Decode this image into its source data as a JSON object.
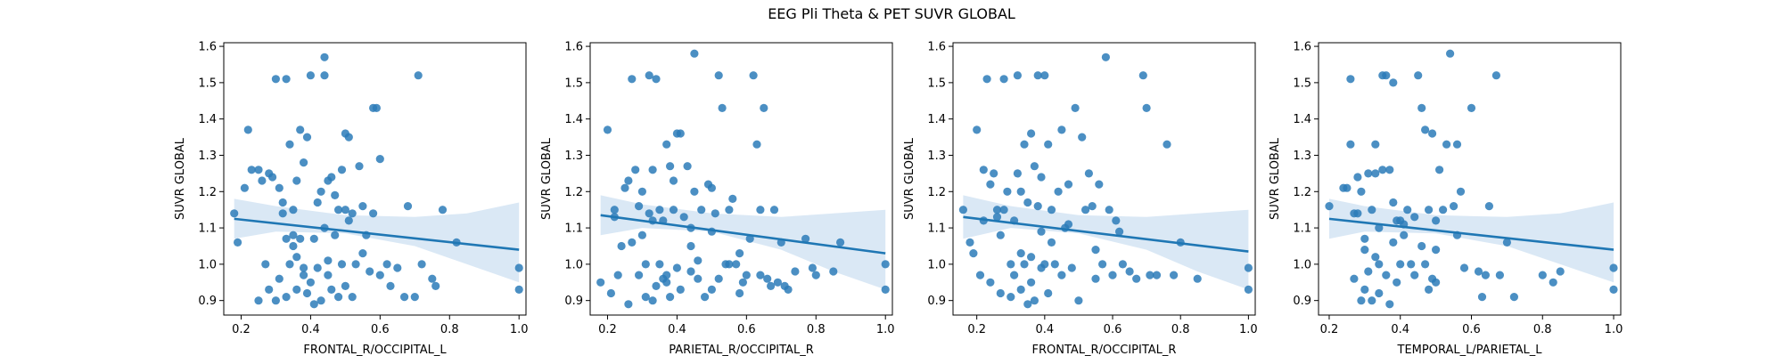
{
  "figure": {
    "title": "EEG Pli Theta & PET SUVR GLOBAL"
  },
  "style": {
    "point_color": "#2b7bb9",
    "line_color": "#1f77b4",
    "band_color": "#c6dbef"
  },
  "chart_data": [
    {
      "type": "scatter",
      "xlabel": "FRONTAL_R/OCCIPITAL_L",
      "ylabel": "SUVR GLOBAL",
      "xlim": [
        0.15,
        1.02
      ],
      "ylim": [
        0.86,
        1.61
      ],
      "xticks": [
        "0.2",
        "0.4",
        "0.6",
        "0.8",
        "1.0"
      ],
      "yticks": [
        "0.9",
        "1.0",
        "1.1",
        "1.2",
        "1.3",
        "1.4",
        "1.5",
        "1.6"
      ],
      "regression": {
        "x": [
          0.18,
          1.0
        ],
        "y": [
          1.125,
          1.04
        ]
      },
      "ci_band": {
        "x": [
          0.18,
          0.3,
          0.5,
          0.7,
          0.85,
          1.0
        ],
        "upper": [
          1.18,
          1.16,
          1.135,
          1.13,
          1.14,
          1.17
        ],
        "lower": [
          1.07,
          1.09,
          1.085,
          1.05,
          1.0,
          0.95
        ]
      },
      "points": {
        "x": [
          0.18,
          0.19,
          0.21,
          0.22,
          0.23,
          0.25,
          0.25,
          0.26,
          0.27,
          0.28,
          0.28,
          0.29,
          0.3,
          0.3,
          0.31,
          0.31,
          0.32,
          0.32,
          0.33,
          0.33,
          0.34,
          0.34,
          0.35,
          0.35,
          0.36,
          0.36,
          0.36,
          0.37,
          0.37,
          0.38,
          0.38,
          0.38,
          0.39,
          0.39,
          0.4,
          0.4,
          0.41,
          0.41,
          0.42,
          0.42,
          0.43,
          0.43,
          0.44,
          0.44,
          0.44,
          0.45,
          0.45,
          0.46,
          0.46,
          0.47,
          0.47,
          0.48,
          0.48,
          0.49,
          0.49,
          0.5,
          0.5,
          0.5,
          0.51,
          0.51,
          0.52,
          0.52,
          0.53,
          0.54,
          0.55,
          0.55,
          0.56,
          0.57,
          0.58,
          0.58,
          0.59,
          0.6,
          0.6,
          0.62,
          0.63,
          0.65,
          0.67,
          0.68,
          0.7,
          0.71,
          0.72,
          0.75,
          0.76,
          0.78,
          0.82,
          1.0,
          1.0,
          0.35,
          0.33,
          0.45
        ],
        "y": [
          1.14,
          1.06,
          1.21,
          1.37,
          1.26,
          1.26,
          0.9,
          1.23,
          1.0,
          1.25,
          0.93,
          1.24,
          0.9,
          1.51,
          1.21,
          0.96,
          1.17,
          1.14,
          0.91,
          1.51,
          1.33,
          1.0,
          1.15,
          1.08,
          1.23,
          1.02,
          0.93,
          1.37,
          1.07,
          1.28,
          0.99,
          0.97,
          1.35,
          0.92,
          1.52,
          0.95,
          1.07,
          0.89,
          1.17,
          0.99,
          1.2,
          0.9,
          1.57,
          1.52,
          1.1,
          1.23,
          0.97,
          1.24,
          0.93,
          1.19,
          1.08,
          1.15,
          0.91,
          1.26,
          1.0,
          1.36,
          1.15,
          0.94,
          1.35,
          1.12,
          1.14,
          0.91,
          1.0,
          1.27,
          1.16,
          1.03,
          1.08,
          0.98,
          1.43,
          1.14,
          1.43,
          0.97,
          1.29,
          1.0,
          0.94,
          0.99,
          0.91,
          1.16,
          0.91,
          1.52,
          1.0,
          0.96,
          0.94,
          1.15,
          1.06,
          0.99,
          0.93,
          1.05,
          1.07,
          1.01
        ]
      }
    },
    {
      "type": "scatter",
      "xlabel": "PARIETAL_R/OCCIPITAL_R",
      "ylabel": "SUVR GLOBAL",
      "xlim": [
        0.15,
        1.02
      ],
      "ylim": [
        0.86,
        1.61
      ],
      "xticks": [
        "0.2",
        "0.4",
        "0.6",
        "0.8",
        "1.0"
      ],
      "yticks": [
        "0.9",
        "1.0",
        "1.1",
        "1.2",
        "1.3",
        "1.4",
        "1.5",
        "1.6"
      ],
      "regression": {
        "x": [
          0.18,
          1.0
        ],
        "y": [
          1.135,
          1.03
        ]
      },
      "ci_band": {
        "x": [
          0.18,
          0.3,
          0.5,
          0.7,
          0.85,
          1.0
        ],
        "upper": [
          1.19,
          1.165,
          1.14,
          1.13,
          1.14,
          1.15
        ],
        "lower": [
          1.08,
          1.1,
          1.09,
          1.04,
          0.98,
          0.93
        ]
      },
      "points": {
        "x": [
          0.18,
          0.2,
          0.21,
          0.22,
          0.22,
          0.23,
          0.24,
          0.25,
          0.26,
          0.26,
          0.27,
          0.27,
          0.28,
          0.29,
          0.29,
          0.3,
          0.3,
          0.31,
          0.31,
          0.32,
          0.32,
          0.33,
          0.33,
          0.34,
          0.34,
          0.35,
          0.35,
          0.36,
          0.36,
          0.37,
          0.37,
          0.38,
          0.38,
          0.39,
          0.39,
          0.4,
          0.4,
          0.41,
          0.41,
          0.42,
          0.43,
          0.44,
          0.44,
          0.45,
          0.45,
          0.46,
          0.46,
          0.47,
          0.48,
          0.49,
          0.5,
          0.5,
          0.51,
          0.52,
          0.52,
          0.53,
          0.54,
          0.55,
          0.55,
          0.56,
          0.57,
          0.58,
          0.59,
          0.6,
          0.61,
          0.62,
          0.63,
          0.64,
          0.65,
          0.66,
          0.67,
          0.68,
          0.69,
          0.7,
          0.71,
          0.72,
          0.74,
          0.77,
          0.79,
          0.8,
          0.85,
          0.87,
          1.0,
          1.0,
          0.33,
          0.37,
          0.44,
          0.5,
          0.58,
          0.64
        ],
        "y": [
          0.95,
          1.37,
          0.92,
          1.13,
          1.15,
          0.97,
          1.05,
          1.21,
          1.23,
          0.89,
          1.51,
          1.06,
          1.26,
          1.16,
          0.97,
          1.08,
          1.2,
          1.0,
          0.91,
          1.52,
          1.14,
          1.26,
          0.9,
          1.51,
          0.94,
          1.15,
          1.0,
          1.12,
          0.96,
          1.33,
          0.97,
          1.27,
          0.91,
          1.23,
          1.15,
          1.36,
          0.99,
          1.36,
          0.93,
          1.13,
          1.27,
          1.1,
          0.98,
          1.58,
          1.2,
          1.01,
          0.96,
          1.15,
          0.91,
          1.22,
          1.21,
          0.93,
          1.14,
          1.52,
          0.96,
          1.43,
          1.0,
          1.15,
          1.0,
          1.18,
          1.0,
          0.92,
          0.95,
          0.97,
          1.07,
          1.52,
          1.33,
          0.97,
          1.43,
          0.96,
          0.94,
          1.15,
          0.95,
          1.06,
          0.94,
          0.93,
          0.98,
          1.07,
          0.99,
          0.97,
          0.98,
          1.06,
          1.0,
          0.93,
          1.12,
          0.95,
          1.05,
          1.09,
          1.03,
          1.15
        ]
      }
    },
    {
      "type": "scatter",
      "xlabel": "FRONTAL_R/OCCIPITAL_R",
      "ylabel": "SUVR GLOBAL",
      "xlim": [
        0.13,
        1.02
      ],
      "ylim": [
        0.86,
        1.61
      ],
      "xticks": [
        "0.2",
        "0.4",
        "0.6",
        "0.8",
        "1.0"
      ],
      "yticks": [
        "0.9",
        "1.0",
        "1.1",
        "1.2",
        "1.3",
        "1.4",
        "1.5",
        "1.6"
      ],
      "regression": {
        "x": [
          0.16,
          1.0
        ],
        "y": [
          1.13,
          1.035
        ]
      },
      "ci_band": {
        "x": [
          0.16,
          0.3,
          0.5,
          0.7,
          0.85,
          1.0
        ],
        "upper": [
          1.19,
          1.16,
          1.135,
          1.13,
          1.14,
          1.15
        ],
        "lower": [
          1.07,
          1.1,
          1.085,
          1.04,
          0.98,
          0.93
        ]
      },
      "points": {
        "x": [
          0.16,
          0.18,
          0.19,
          0.2,
          0.21,
          0.22,
          0.22,
          0.23,
          0.24,
          0.24,
          0.25,
          0.26,
          0.27,
          0.27,
          0.28,
          0.28,
          0.29,
          0.3,
          0.3,
          0.31,
          0.31,
          0.32,
          0.32,
          0.33,
          0.33,
          0.34,
          0.34,
          0.35,
          0.35,
          0.36,
          0.36,
          0.37,
          0.37,
          0.38,
          0.38,
          0.39,
          0.39,
          0.4,
          0.4,
          0.41,
          0.41,
          0.42,
          0.43,
          0.44,
          0.45,
          0.45,
          0.46,
          0.47,
          0.48,
          0.49,
          0.5,
          0.51,
          0.52,
          0.53,
          0.54,
          0.55,
          0.56,
          0.57,
          0.58,
          0.59,
          0.6,
          0.61,
          0.63,
          0.65,
          0.67,
          0.69,
          0.7,
          0.71,
          0.73,
          0.76,
          0.78,
          0.8,
          0.85,
          1.0,
          1.0,
          0.33,
          0.39,
          0.47,
          0.55,
          0.62,
          0.26,
          0.36,
          0.42
        ],
        "y": [
          1.15,
          1.06,
          1.03,
          1.37,
          0.97,
          1.26,
          1.12,
          1.51,
          1.22,
          0.95,
          1.25,
          1.15,
          1.08,
          0.92,
          1.51,
          1.15,
          1.2,
          1.0,
          0.91,
          1.12,
          0.97,
          1.52,
          1.25,
          1.2,
          0.93,
          1.33,
          1.0,
          1.17,
          0.89,
          1.36,
          0.95,
          1.27,
          0.9,
          1.52,
          1.16,
          1.24,
          0.99,
          1.52,
          1.0,
          1.33,
          0.92,
          1.15,
          1.0,
          1.2,
          1.37,
          0.97,
          1.1,
          1.22,
          0.99,
          1.43,
          0.9,
          1.35,
          1.15,
          1.25,
          1.16,
          0.96,
          1.22,
          1.0,
          1.57,
          1.15,
          0.97,
          1.12,
          1.0,
          0.98,
          0.96,
          1.52,
          1.43,
          0.97,
          0.97,
          1.33,
          0.97,
          1.06,
          0.96,
          0.99,
          0.93,
          1.03,
          1.09,
          1.11,
          1.04,
          1.09,
          1.13,
          1.02,
          1.06
        ]
      }
    },
    {
      "type": "scatter",
      "xlabel": "TEMPORAL_L/PARIETAL_L",
      "ylabel": "SUVR GLOBAL",
      "xlim": [
        0.17,
        1.02
      ],
      "ylim": [
        0.86,
        1.61
      ],
      "xticks": [
        "0.2",
        "0.4",
        "0.6",
        "0.8",
        "1.0"
      ],
      "yticks": [
        "0.9",
        "1.0",
        "1.1",
        "1.2",
        "1.3",
        "1.4",
        "1.5",
        "1.6"
      ],
      "regression": {
        "x": [
          0.2,
          1.0
        ],
        "y": [
          1.125,
          1.04
        ]
      },
      "ci_band": {
        "x": [
          0.2,
          0.3,
          0.5,
          0.7,
          0.85,
          1.0
        ],
        "upper": [
          1.18,
          1.16,
          1.135,
          1.13,
          1.14,
          1.17
        ],
        "lower": [
          1.07,
          1.09,
          1.085,
          1.05,
          1.0,
          0.95
        ]
      },
      "points": {
        "x": [
          0.2,
          0.24,
          0.25,
          0.26,
          0.26,
          0.27,
          0.27,
          0.28,
          0.28,
          0.29,
          0.29,
          0.3,
          0.3,
          0.31,
          0.31,
          0.32,
          0.32,
          0.33,
          0.33,
          0.34,
          0.34,
          0.35,
          0.35,
          0.36,
          0.36,
          0.37,
          0.37,
          0.38,
          0.38,
          0.39,
          0.39,
          0.4,
          0.4,
          0.41,
          0.42,
          0.43,
          0.44,
          0.45,
          0.46,
          0.47,
          0.47,
          0.48,
          0.48,
          0.49,
          0.49,
          0.5,
          0.5,
          0.51,
          0.52,
          0.53,
          0.54,
          0.55,
          0.56,
          0.57,
          0.58,
          0.6,
          0.62,
          0.63,
          0.64,
          0.65,
          0.67,
          0.68,
          0.7,
          0.72,
          0.8,
          0.83,
          0.85,
          1.0,
          1.0,
          0.3,
          0.34,
          0.38,
          0.44,
          0.5,
          0.56,
          0.33,
          0.41,
          0.46
        ],
        "y": [
          1.16,
          1.21,
          1.21,
          1.51,
          1.33,
          1.14,
          0.96,
          1.24,
          1.14,
          1.2,
          0.9,
          1.04,
          0.93,
          1.25,
          0.98,
          1.15,
          0.9,
          1.33,
          1.25,
          1.0,
          0.92,
          1.52,
          1.26,
          1.52,
          0.97,
          1.26,
          0.89,
          1.5,
          1.17,
          1.12,
          0.95,
          1.12,
          1.0,
          1.08,
          1.15,
          1.0,
          0.97,
          1.52,
          1.43,
          1.37,
          1.0,
          1.15,
          0.93,
          1.36,
          0.96,
          1.12,
          0.95,
          1.26,
          1.15,
          1.33,
          1.58,
          1.16,
          1.33,
          1.2,
          0.99,
          1.43,
          0.98,
          0.91,
          0.97,
          1.16,
          1.52,
          0.97,
          1.06,
          0.91,
          0.97,
          0.95,
          0.98,
          0.99,
          0.93,
          1.07,
          1.1,
          1.06,
          1.13,
          1.04,
          1.08,
          1.02,
          1.11,
          1.05
        ]
      }
    }
  ]
}
